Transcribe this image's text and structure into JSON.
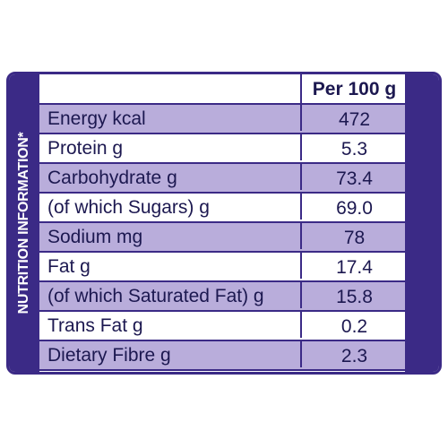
{
  "side_label": "NUTRITION INFORMATION*",
  "header": {
    "column_title": "Per 100 g"
  },
  "table": {
    "rows": [
      [
        "Energy kcal",
        "472"
      ],
      [
        "Protein g",
        "5.3"
      ],
      [
        "Carbohydrate g",
        "73.4"
      ],
      [
        "(of which Sugars) g",
        "69.0"
      ],
      [
        "Sodium mg",
        "78"
      ],
      [
        "Fat g",
        "17.4"
      ],
      [
        "(of which Saturated Fat) g",
        "15.8"
      ],
      [
        "Trans Fat g",
        "0.2"
      ],
      [
        "Dietary Fibre g",
        "2.3"
      ]
    ]
  }
}
